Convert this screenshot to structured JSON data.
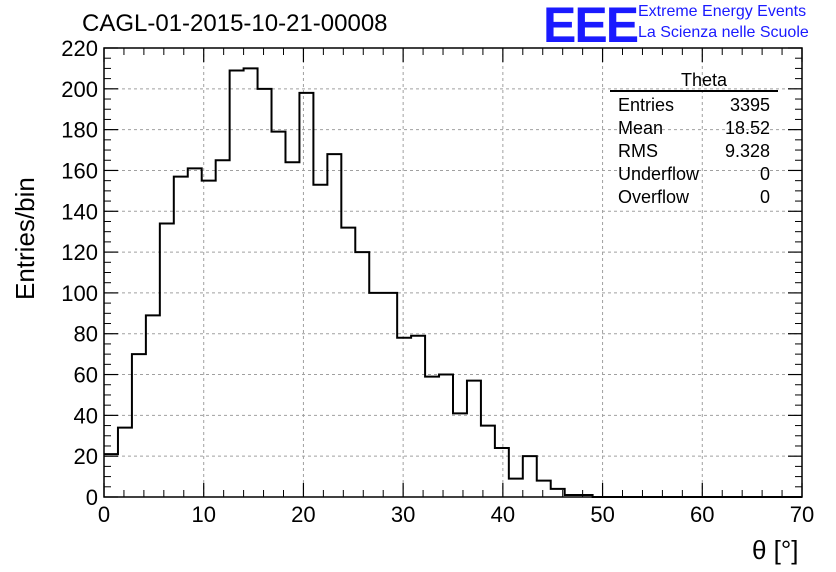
{
  "title": "CAGL-01-2015-10-21-00008",
  "logo": {
    "mark": "EEE",
    "line1": "Extreme Energy Events",
    "line2": "La Scienza nelle Scuole"
  },
  "stats": {
    "name": "Theta",
    "rows": [
      {
        "label": "Entries",
        "value": "3395"
      },
      {
        "label": "Mean",
        "value": "18.52"
      },
      {
        "label": "RMS",
        "value": "9.328"
      },
      {
        "label": "Underflow",
        "value": "0"
      },
      {
        "label": "Overflow",
        "value": "0"
      }
    ]
  },
  "chart_data": {
    "type": "bar",
    "title": "CAGL-01-2015-10-21-00008",
    "xlabel": "θ [°]",
    "ylabel": "Entries/bin",
    "xlim": [
      0,
      70
    ],
    "ylim": [
      0,
      220
    ],
    "bin_width": 1.4,
    "x_ticks": [
      0,
      10,
      20,
      30,
      40,
      50,
      60,
      70
    ],
    "y_ticks": [
      0,
      20,
      40,
      60,
      80,
      100,
      120,
      140,
      160,
      180,
      200,
      220
    ],
    "grid": true,
    "legend": "top-right stats box",
    "values": [
      21,
      34,
      70,
      89,
      134,
      157,
      161,
      155,
      165,
      209,
      210,
      200,
      179,
      164,
      198,
      153,
      168,
      132,
      120,
      100,
      100,
      78,
      79,
      59,
      60,
      41,
      57,
      35,
      24,
      9,
      20,
      8,
      4,
      1,
      1,
      0,
      0,
      0,
      0,
      0,
      0,
      0,
      0,
      0,
      0,
      0,
      0,
      0,
      0,
      0
    ]
  }
}
